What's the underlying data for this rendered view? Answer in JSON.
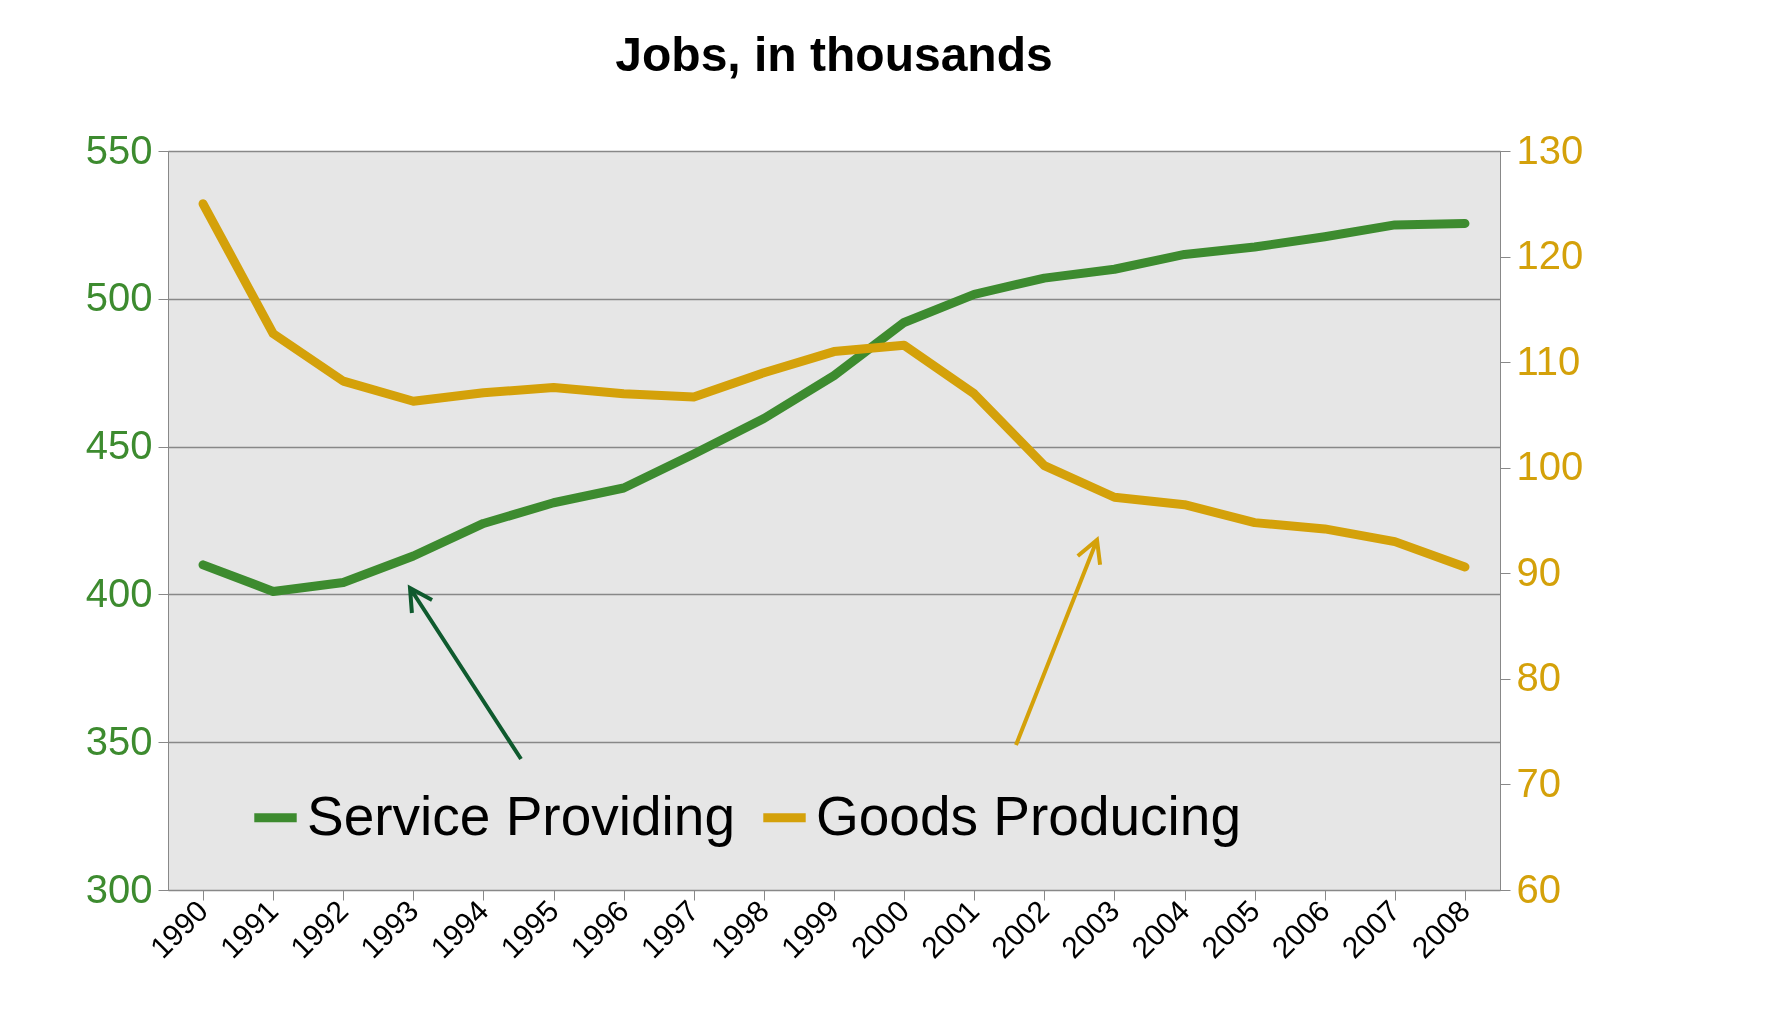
{
  "chart_data": {
    "type": "line",
    "title": "Jobs, in thousands",
    "categories": [
      "1990",
      "1991",
      "1992",
      "1993",
      "1994",
      "1995",
      "1996",
      "1997",
      "1998",
      "1999",
      "2000",
      "2001",
      "2002",
      "2003",
      "2004",
      "2005",
      "2006",
      "2007",
      "2008"
    ],
    "series": [
      {
        "name": "Service Providing",
        "color": "#3d8b2f",
        "values": [
          410,
          401,
          404,
          413,
          424,
          431,
          436,
          447.5,
          459.5,
          474,
          492,
          501.5,
          507,
          510,
          515,
          517.5,
          521,
          525,
          525.5
        ]
      },
      {
        "name": "Goods Producing",
        "color": "#d4a10a",
        "axis": "y2",
        "values": [
          125,
          112.7,
          108.2,
          106.3,
          107.1,
          107.6,
          107,
          106.7,
          109,
          111,
          111.6,
          107,
          100.2,
          97.2,
          96.5,
          94.8,
          94.2,
          93,
          90.6
        ]
      }
    ],
    "ylim": [
      300,
      550
    ],
    "yticks": [
      300,
      350,
      400,
      450,
      500,
      550
    ],
    "y2lim": [
      60,
      130
    ],
    "y2ticks": [
      60,
      70,
      80,
      90,
      100,
      110,
      120,
      130
    ],
    "grid": "y",
    "legend": "bottom",
    "marker": "none",
    "line_style": "solid"
  }
}
